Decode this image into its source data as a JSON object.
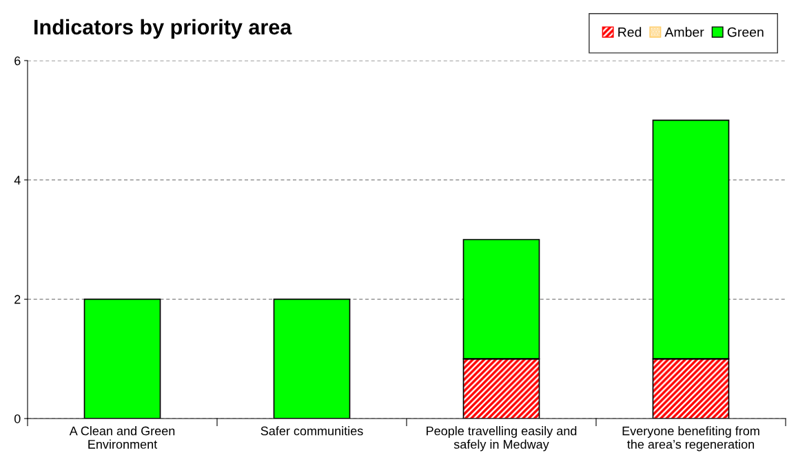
{
  "chart_data": {
    "type": "bar",
    "title": "Indicators by priority area",
    "stacked": true,
    "categories": [
      "A Clean and Green\nEnvironment",
      "Safer communities",
      "People travelling easily and\nsafely in Medway",
      "Everyone benefiting from\nthe area’s regeneration"
    ],
    "series": [
      {
        "name": "Red",
        "color": "#ff0000",
        "values": [
          0,
          0,
          1,
          1
        ]
      },
      {
        "name": "Amber",
        "color": "#ffcc66",
        "values": [
          0,
          0,
          0,
          0
        ]
      },
      {
        "name": "Green",
        "color": "#00ff00",
        "values": [
          2,
          2,
          2,
          4
        ]
      }
    ],
    "ylim": [
      0,
      6
    ],
    "yticks": [
      0,
      2,
      4,
      6
    ],
    "grid": "y",
    "legend": "top right"
  }
}
